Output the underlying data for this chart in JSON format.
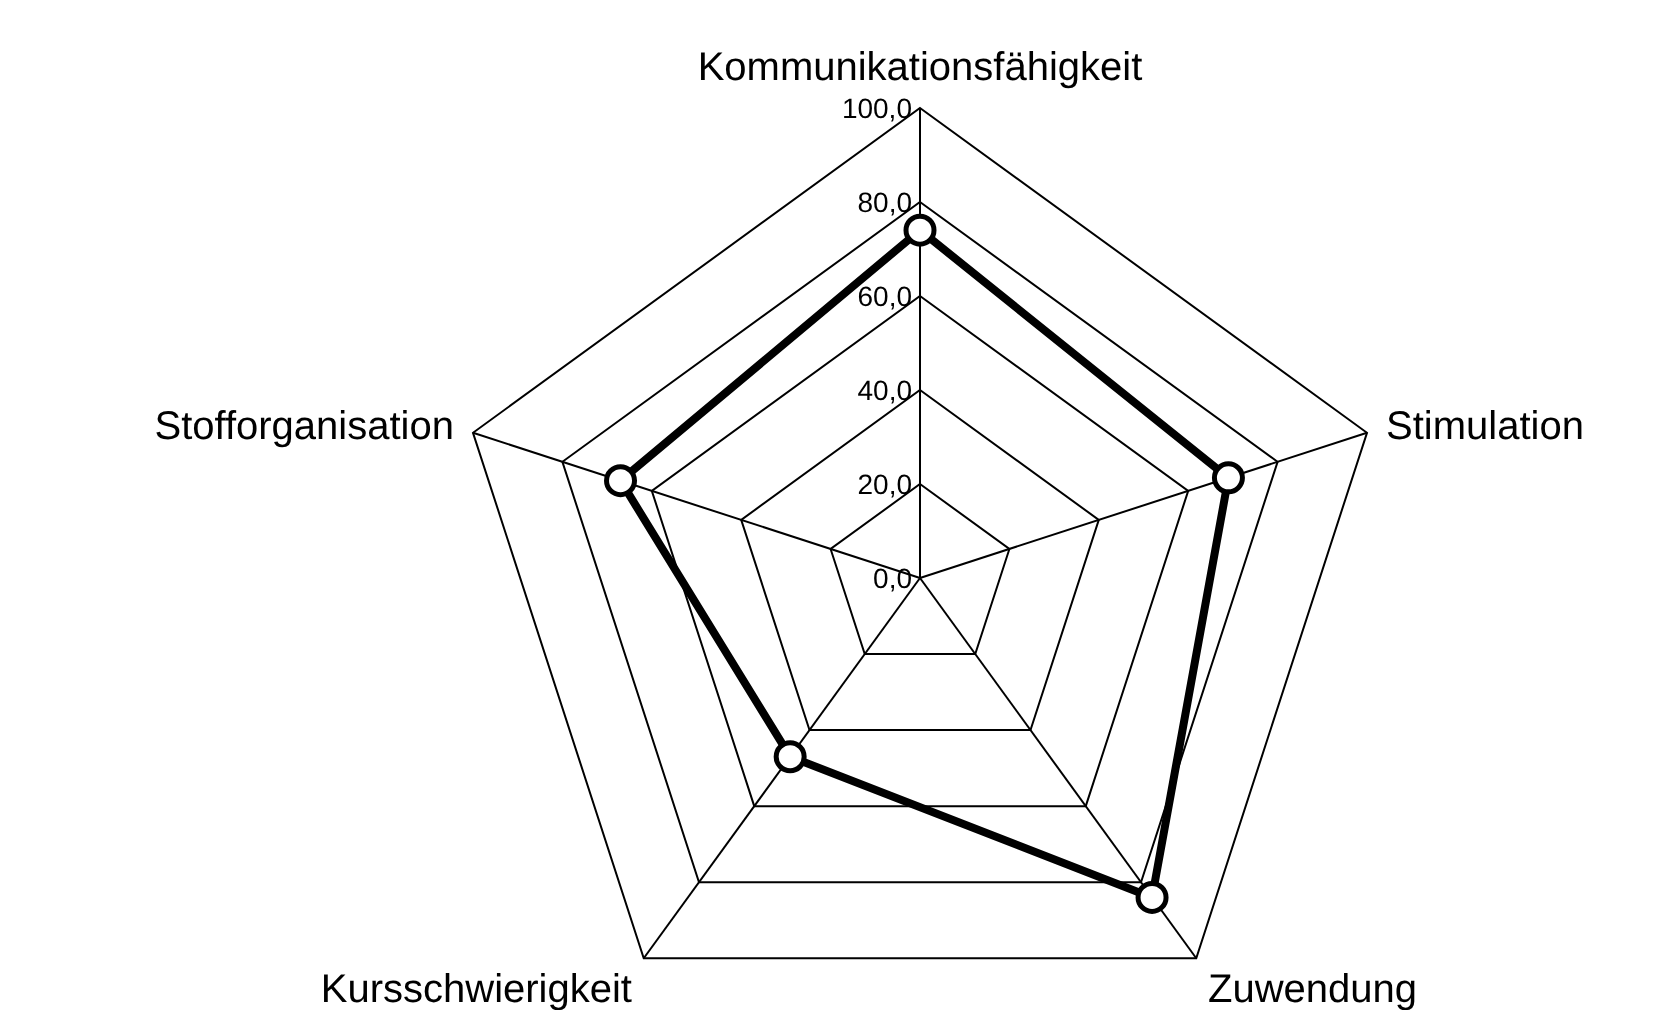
{
  "chart_data": {
    "type": "radar",
    "categories": [
      "Kommunikationsfähigkeit",
      "Stimulation",
      "Zuwendung",
      "Kursschwierigkeit",
      "Stofforganisation"
    ],
    "series": [
      {
        "color": "#000000",
        "values": [
          74,
          69,
          84,
          47,
          67
        ]
      }
    ],
    "ylim": [
      0,
      100
    ],
    "yticks": [
      {
        "value": 0,
        "label": "0,0"
      },
      {
        "value": 20,
        "label": "20,0"
      },
      {
        "value": 40,
        "label": "40,0"
      },
      {
        "value": 60,
        "label": "60,0"
      },
      {
        "value": 80,
        "label": "80,0"
      },
      {
        "value": 100,
        "label": "100,0"
      }
    ],
    "grid": true,
    "marker": "circle",
    "line_style": "solid"
  }
}
